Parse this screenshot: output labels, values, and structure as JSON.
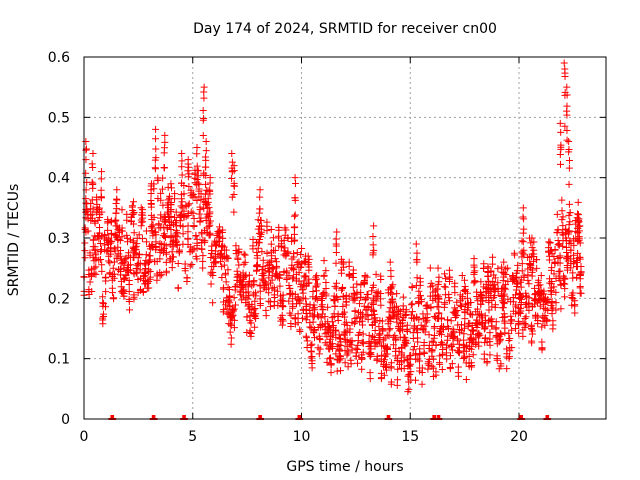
{
  "chart_data": {
    "type": "scatter",
    "title": "Day 174 of 2024, SRMTID for receiver cn00",
    "xlabel": "GPS time / hours",
    "ylabel": "SRMTID / TECUs",
    "xlim": [
      0,
      24
    ],
    "ylim": [
      0,
      0.6
    ],
    "xticks": [
      0,
      5,
      10,
      15,
      20
    ],
    "xtick_labels": [
      "0",
      "5",
      "10",
      "15",
      "20"
    ],
    "yticks": [
      0,
      0.1,
      0.2,
      0.3,
      0.4,
      0.5,
      0.6
    ],
    "ytick_labels": [
      "0",
      "0.1",
      "0.2",
      "0.3",
      "0.4",
      "0.5",
      "0.6"
    ],
    "grid": true,
    "marker": "+",
    "color": "#ff0000",
    "profile": [
      [
        0.0,
        0.26
      ],
      [
        0.5,
        0.3
      ],
      [
        1.0,
        0.22
      ],
      [
        1.5,
        0.32
      ],
      [
        2.0,
        0.28
      ],
      [
        2.5,
        0.27
      ],
      [
        3.0,
        0.3
      ],
      [
        3.5,
        0.32
      ],
      [
        4.0,
        0.31
      ],
      [
        4.5,
        0.3
      ],
      [
        5.0,
        0.32
      ],
      [
        5.5,
        0.34
      ],
      [
        6.0,
        0.26
      ],
      [
        6.5,
        0.22
      ],
      [
        7.0,
        0.22
      ],
      [
        7.5,
        0.2
      ],
      [
        8.0,
        0.24
      ],
      [
        8.5,
        0.26
      ],
      [
        9.0,
        0.24
      ],
      [
        9.5,
        0.25
      ],
      [
        10.0,
        0.2
      ],
      [
        10.5,
        0.17
      ],
      [
        11.0,
        0.17
      ],
      [
        11.5,
        0.16
      ],
      [
        12.0,
        0.17
      ],
      [
        12.5,
        0.17
      ],
      [
        13.0,
        0.16
      ],
      [
        13.5,
        0.16
      ],
      [
        14.0,
        0.15
      ],
      [
        14.5,
        0.13
      ],
      [
        15.0,
        0.13
      ],
      [
        15.5,
        0.15
      ],
      [
        16.0,
        0.16
      ],
      [
        16.5,
        0.16
      ],
      [
        17.0,
        0.16
      ],
      [
        17.5,
        0.16
      ],
      [
        18.0,
        0.17
      ],
      [
        18.5,
        0.18
      ],
      [
        19.0,
        0.17
      ],
      [
        19.5,
        0.17
      ],
      [
        20.0,
        0.2
      ],
      [
        20.5,
        0.21
      ],
      [
        21.0,
        0.2
      ],
      [
        21.5,
        0.24
      ],
      [
        22.0,
        0.28
      ],
      [
        22.5,
        0.27
      ],
      [
        22.9,
        0.26
      ]
    ],
    "spikes": [
      [
        0.1,
        0.46
      ],
      [
        0.4,
        0.44
      ],
      [
        0.8,
        0.41
      ],
      [
        1.5,
        0.38
      ],
      [
        2.3,
        0.36
      ],
      [
        3.1,
        0.39
      ],
      [
        3.3,
        0.48
      ],
      [
        3.7,
        0.47
      ],
      [
        4.0,
        0.39
      ],
      [
        4.5,
        0.44
      ],
      [
        4.8,
        0.43
      ],
      [
        5.2,
        0.45
      ],
      [
        5.5,
        0.55
      ],
      [
        5.6,
        0.46
      ],
      [
        5.8,
        0.4
      ],
      [
        6.8,
        0.44
      ],
      [
        6.9,
        0.42
      ],
      [
        8.1,
        0.38
      ],
      [
        9.7,
        0.4
      ],
      [
        10.2,
        0.27
      ],
      [
        11.6,
        0.31
      ],
      [
        13.3,
        0.32
      ],
      [
        14.1,
        0.26
      ],
      [
        15.3,
        0.29
      ],
      [
        16.3,
        0.25
      ],
      [
        17.5,
        0.23
      ],
      [
        18.6,
        0.25
      ],
      [
        19.3,
        0.26
      ],
      [
        20.2,
        0.35
      ],
      [
        20.6,
        0.3
      ],
      [
        21.5,
        0.28
      ],
      [
        21.9,
        0.49
      ],
      [
        22.1,
        0.59
      ],
      [
        22.2,
        0.55
      ],
      [
        22.3,
        0.46
      ],
      [
        22.7,
        0.34
      ],
      [
        22.8,
        0.32
      ]
    ],
    "zero_markers": [
      1.3,
      3.2,
      4.6,
      8.1,
      9.9,
      14.0,
      16.1,
      16.3,
      20.1,
      21.3
    ]
  }
}
